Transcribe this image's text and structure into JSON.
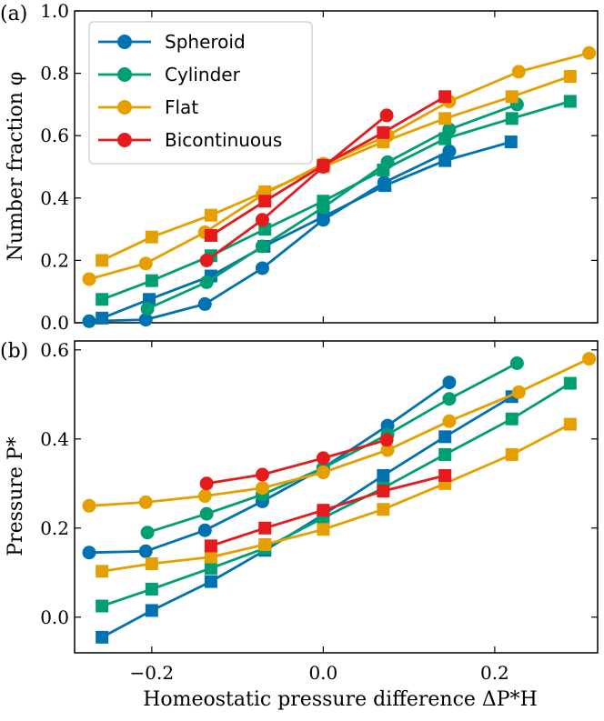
{
  "chart_data": [
    {
      "panel": "(a)",
      "type": "line",
      "ylabel": "Number fraction φ",
      "xlim": [
        -0.29,
        0.32
      ],
      "ylim": [
        0.0,
        1.0
      ],
      "yticks": [
        0.0,
        0.2,
        0.4,
        0.6,
        0.8,
        1.0
      ],
      "ytick_labels": [
        "0.0",
        "0.2",
        "0.4",
        "0.6",
        "0.8",
        "1.0"
      ],
      "legend_position": "top-left",
      "series": [
        {
          "name": "Spheroid",
          "color": "#0072b2",
          "marker": "circle",
          "x": [
            -0.273,
            -0.207,
            -0.138,
            -0.071,
            0.0,
            0.071,
            0.147
          ],
          "y": [
            0.005,
            0.01,
            0.06,
            0.175,
            0.33,
            0.45,
            0.55
          ]
        },
        {
          "name": "Spheroid",
          "color": "#0072b2",
          "marker": "square",
          "x": [
            -0.258,
            -0.203,
            -0.131,
            -0.069,
            0.0,
            0.072,
            0.142,
            0.219
          ],
          "y": [
            0.015,
            0.075,
            0.15,
            0.245,
            0.34,
            0.44,
            0.52,
            0.58
          ]
        },
        {
          "name": "Cylinder",
          "color": "#009e73",
          "marker": "circle",
          "x": [
            -0.205,
            -0.136,
            -0.071,
            0.0,
            0.075,
            0.147,
            0.226
          ],
          "y": [
            0.045,
            0.13,
            0.245,
            0.37,
            0.515,
            0.62,
            0.7
          ]
        },
        {
          "name": "Cylinder",
          "color": "#009e73",
          "marker": "square",
          "x": [
            -0.258,
            -0.2,
            -0.131,
            -0.068,
            0.0,
            0.07,
            0.142,
            0.22,
            0.288
          ],
          "y": [
            0.075,
            0.135,
            0.215,
            0.3,
            0.39,
            0.49,
            0.59,
            0.655,
            0.71
          ]
        },
        {
          "name": "Flat",
          "color": "#e69f00",
          "marker": "circle",
          "x": [
            -0.273,
            -0.207,
            -0.138,
            -0.071,
            0.0,
            0.075,
            0.147,
            0.228,
            0.31
          ],
          "y": [
            0.14,
            0.19,
            0.29,
            0.41,
            0.51,
            0.6,
            0.71,
            0.805,
            0.865
          ]
        },
        {
          "name": "Flat",
          "color": "#e69f00",
          "marker": "square",
          "x": [
            -0.258,
            -0.2,
            -0.131,
            -0.068,
            0.0,
            0.07,
            0.142,
            0.22,
            0.288
          ],
          "y": [
            0.2,
            0.275,
            0.345,
            0.42,
            0.5,
            0.58,
            0.655,
            0.725,
            0.79
          ]
        },
        {
          "name": "Bicontinuous",
          "color": "#e41a1c",
          "marker": "circle",
          "x": [
            -0.136,
            -0.071,
            0.0,
            0.074
          ],
          "y": [
            0.2,
            0.33,
            0.5,
            0.665
          ]
        },
        {
          "name": "Bicontinuous",
          "color": "#e41a1c",
          "marker": "square",
          "x": [
            -0.131,
            -0.068,
            0.0,
            0.07,
            0.142
          ],
          "y": [
            0.28,
            0.39,
            0.505,
            0.61,
            0.725
          ]
        }
      ],
      "legend": [
        "Spheroid",
        "Cylinder",
        "Flat",
        "Bicontinuous"
      ]
    },
    {
      "panel": "(b)",
      "type": "line",
      "ylabel": "Pressure P*",
      "xlabel": "Homeostatic pressure difference ΔP*H",
      "xlim": [
        -0.29,
        0.32
      ],
      "ylim": [
        -0.08,
        0.62
      ],
      "yticks": [
        0.0,
        0.2,
        0.4,
        0.6
      ],
      "ytick_labels": [
        "0.0",
        "0.2",
        "0.4",
        "0.6"
      ],
      "xticks": [
        -0.2,
        0.0,
        0.2
      ],
      "xtick_labels": [
        "−0.2",
        "0.0",
        "0.2"
      ],
      "series": [
        {
          "name": "Spheroid",
          "color": "#0072b2",
          "marker": "circle",
          "x": [
            -0.273,
            -0.207,
            -0.138,
            -0.071,
            0.0,
            0.075,
            0.147
          ],
          "y": [
            0.145,
            0.148,
            0.195,
            0.26,
            0.335,
            0.43,
            0.527
          ]
        },
        {
          "name": "Spheroid",
          "color": "#0072b2",
          "marker": "square",
          "x": [
            -0.258,
            -0.2,
            -0.131,
            -0.068,
            0.0,
            0.07,
            0.142,
            0.22
          ],
          "y": [
            -0.045,
            0.015,
            0.08,
            0.15,
            0.23,
            0.318,
            0.405,
            0.495
          ]
        },
        {
          "name": "Cylinder",
          "color": "#009e73",
          "marker": "circle",
          "x": [
            -0.205,
            -0.136,
            -0.071,
            0.0,
            0.075,
            0.147,
            0.226
          ],
          "y": [
            0.19,
            0.232,
            0.275,
            0.335,
            0.41,
            0.49,
            0.57
          ]
        },
        {
          "name": "Cylinder",
          "color": "#009e73",
          "marker": "square",
          "x": [
            -0.258,
            -0.2,
            -0.131,
            -0.068,
            0.0,
            0.07,
            0.142,
            0.22,
            0.288
          ],
          "y": [
            0.025,
            0.063,
            0.11,
            0.155,
            0.223,
            0.29,
            0.365,
            0.445,
            0.525
          ]
        },
        {
          "name": "Flat",
          "color": "#e69f00",
          "marker": "circle",
          "x": [
            -0.273,
            -0.207,
            -0.138,
            -0.071,
            0.0,
            0.075,
            0.147,
            0.228,
            0.31
          ],
          "y": [
            0.25,
            0.258,
            0.272,
            0.29,
            0.325,
            0.375,
            0.44,
            0.505,
            0.58
          ]
        },
        {
          "name": "Flat",
          "color": "#e69f00",
          "marker": "square",
          "x": [
            -0.258,
            -0.2,
            -0.131,
            -0.068,
            0.0,
            0.07,
            0.142,
            0.22,
            0.288
          ],
          "y": [
            0.103,
            0.12,
            0.135,
            0.163,
            0.197,
            0.242,
            0.3,
            0.365,
            0.433
          ]
        },
        {
          "name": "Bicontinuous",
          "color": "#e41a1c",
          "marker": "circle",
          "x": [
            -0.136,
            -0.071,
            0.0,
            0.074
          ],
          "y": [
            0.3,
            0.32,
            0.357,
            0.398
          ]
        },
        {
          "name": "Bicontinuous",
          "color": "#e41a1c",
          "marker": "square",
          "x": [
            -0.131,
            -0.068,
            0.0,
            0.07,
            0.142
          ],
          "y": [
            0.16,
            0.2,
            0.24,
            0.283,
            0.318
          ]
        }
      ]
    }
  ]
}
